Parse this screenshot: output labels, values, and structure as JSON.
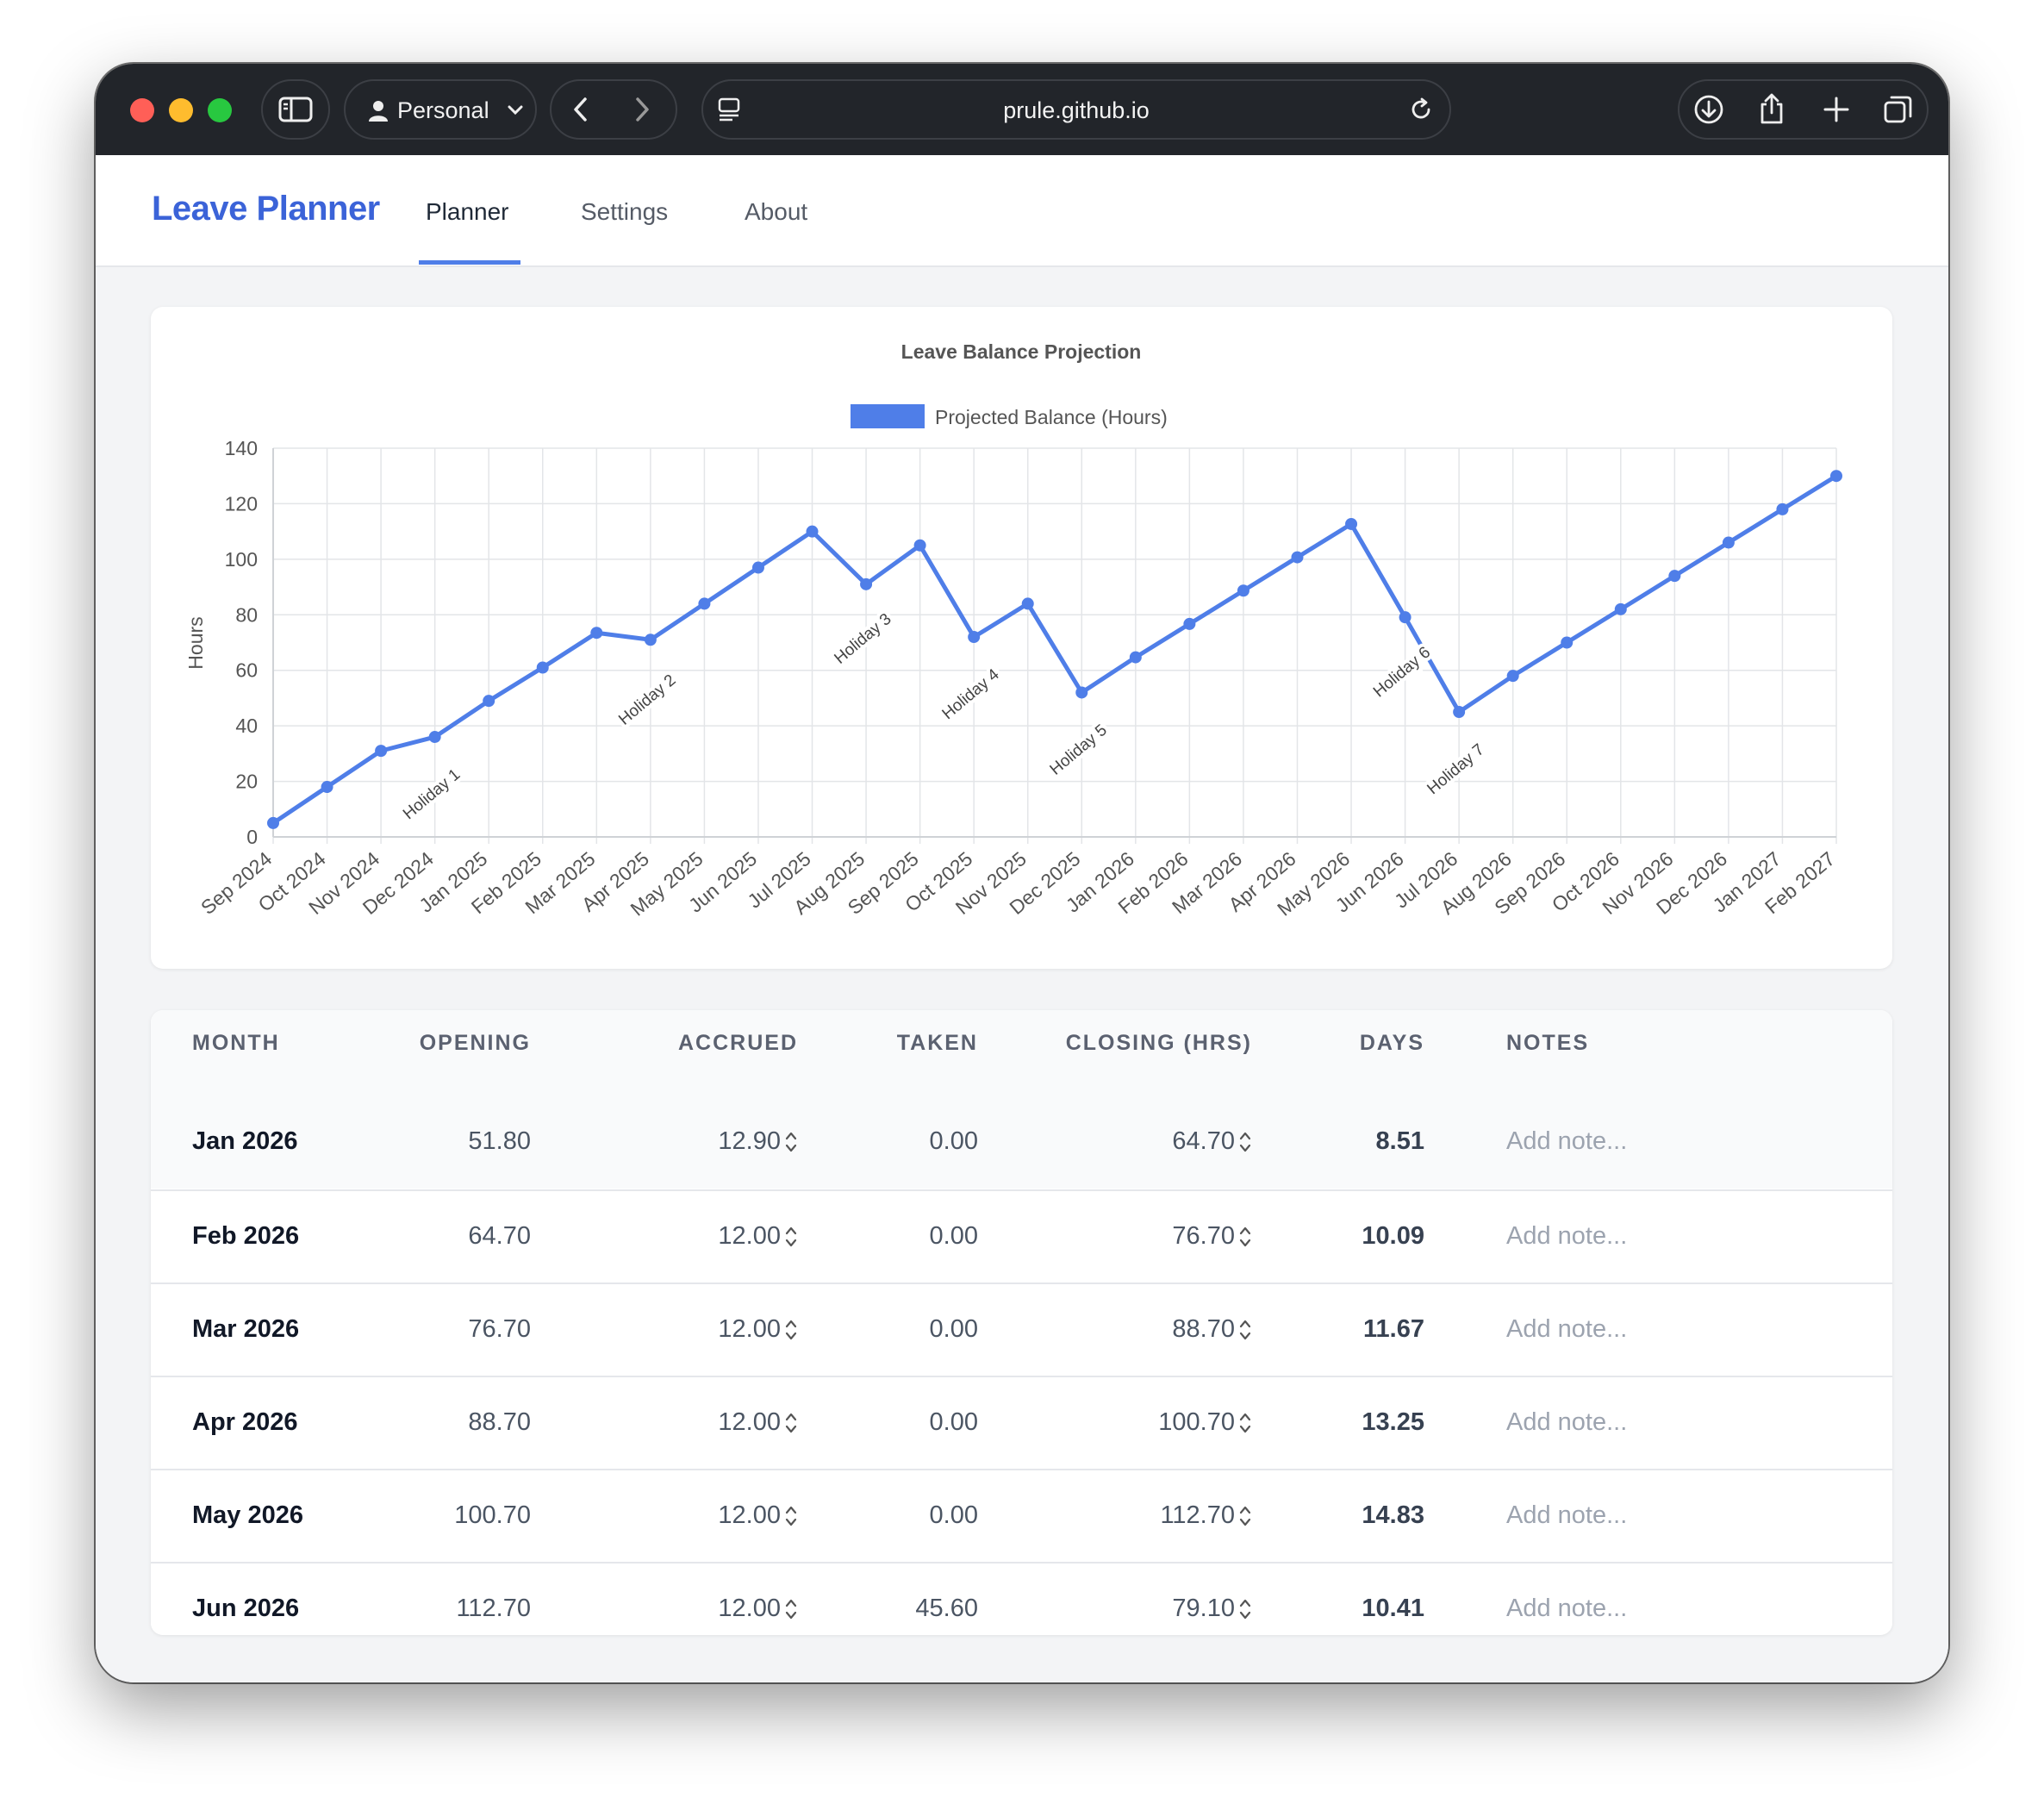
{
  "browser": {
    "profile": "Personal",
    "url": "prule.github.io"
  },
  "app": {
    "brand": "Leave Planner",
    "tabs": [
      {
        "label": "Planner",
        "active": true
      },
      {
        "label": "Settings",
        "active": false
      },
      {
        "label": "About",
        "active": false
      }
    ]
  },
  "colors": {
    "accent": "#3b63d8",
    "series": "#4f7ee8"
  },
  "chart_data": {
    "type": "line",
    "title": "Leave Balance Projection",
    "ylabel": "Hours",
    "ylim": [
      0,
      140
    ],
    "yticks": [
      0,
      20,
      40,
      60,
      80,
      100,
      120,
      140
    ],
    "grid": true,
    "legend_position": "top-center",
    "categories": [
      "Sep 2024",
      "Oct 2024",
      "Nov 2024",
      "Dec 2024",
      "Jan 2025",
      "Feb 2025",
      "Mar 2025",
      "Apr 2025",
      "May 2025",
      "Jun 2025",
      "Jul 2025",
      "Aug 2025",
      "Sep 2025",
      "Oct 2025",
      "Nov 2025",
      "Dec 2025",
      "Jan 2026",
      "Feb 2026",
      "Mar 2026",
      "Apr 2026",
      "May 2026",
      "Jun 2026",
      "Jul 2026",
      "Aug 2026",
      "Sep 2026",
      "Oct 2026",
      "Nov 2026",
      "Dec 2026",
      "Jan 2027",
      "Feb 2027"
    ],
    "series": [
      {
        "name": "Projected Balance (Hours)",
        "color": "#4f7ee8",
        "values": [
          5,
          18,
          31,
          36,
          49,
          61,
          73.5,
          71,
          84,
          97,
          110,
          91,
          105,
          72,
          84,
          52,
          64.7,
          76.7,
          88.7,
          100.7,
          112.7,
          79.1,
          45,
          58,
          70,
          82,
          94,
          106,
          118,
          130
        ]
      }
    ],
    "annotations": [
      {
        "label": "Holiday 1",
        "category": "Dec 2024",
        "y": 14
      },
      {
        "label": "Holiday 2",
        "category": "Apr 2025",
        "y": 48
      },
      {
        "label": "Holiday 3",
        "category": "Aug 2025",
        "y": 70
      },
      {
        "label": "Holiday 4",
        "category": "Oct 2025",
        "y": 50
      },
      {
        "label": "Holiday 5",
        "category": "Dec 2025",
        "y": 30
      },
      {
        "label": "Holiday 6",
        "category": "Jun 2026",
        "y": 58
      },
      {
        "label": "Holiday 7",
        "category": "Jul 2026",
        "y": 23
      }
    ]
  },
  "table": {
    "headers": {
      "month": "MONTH",
      "opening": "OPENING",
      "accrued": "ACCRUED",
      "taken": "TAKEN",
      "closing": "CLOSING (HRS)",
      "days": "DAYS",
      "notes": "NOTES"
    },
    "rows": [
      {
        "month": "Jan 2026",
        "opening": "51.80",
        "accrued": "12.90",
        "taken": "0.00",
        "closing": "64.70",
        "days": "8.51",
        "note_placeholder": "Add note..."
      },
      {
        "month": "Feb 2026",
        "opening": "64.70",
        "accrued": "12.00",
        "taken": "0.00",
        "closing": "76.70",
        "days": "10.09",
        "note_placeholder": "Add note..."
      },
      {
        "month": "Mar 2026",
        "opening": "76.70",
        "accrued": "12.00",
        "taken": "0.00",
        "closing": "88.70",
        "days": "11.67",
        "note_placeholder": "Add note..."
      },
      {
        "month": "Apr 2026",
        "opening": "88.70",
        "accrued": "12.00",
        "taken": "0.00",
        "closing": "100.70",
        "days": "13.25",
        "note_placeholder": "Add note..."
      },
      {
        "month": "May 2026",
        "opening": "100.70",
        "accrued": "12.00",
        "taken": "0.00",
        "closing": "112.70",
        "days": "14.83",
        "note_placeholder": "Add note..."
      },
      {
        "month": "Jun 2026",
        "opening": "112.70",
        "accrued": "12.00",
        "taken": "45.60",
        "closing": "79.10",
        "days": "10.41",
        "note_placeholder": "Add note..."
      }
    ]
  }
}
